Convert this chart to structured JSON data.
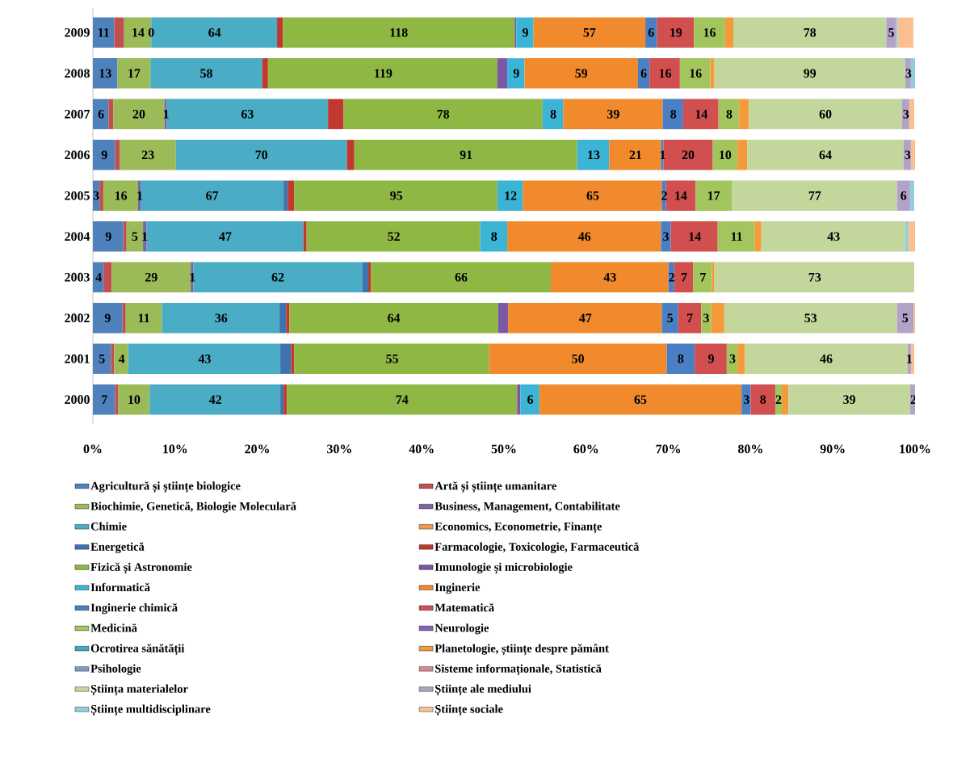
{
  "chart_data": {
    "type": "bar",
    "orientation": "horizontal",
    "stacked": true,
    "categories": [
      "2009",
      "2008",
      "2007",
      "2006",
      "2005",
      "2004",
      "2003",
      "2002",
      "2001",
      "2000"
    ],
    "xlim": [
      0,
      100
    ],
    "xticks": [
      {
        "value": 0,
        "label": "0%"
      },
      {
        "value": 10,
        "label": "10%"
      },
      {
        "value": 20,
        "label": "20%"
      },
      {
        "value": 30,
        "label": "30%"
      },
      {
        "value": 40,
        "label": "40%"
      },
      {
        "value": 50,
        "label": "50%"
      },
      {
        "value": 60,
        "label": "60%"
      },
      {
        "value": 70,
        "label": "70%"
      },
      {
        "value": 80,
        "label": "80%"
      },
      {
        "value": 90,
        "label": "90%"
      },
      {
        "value": 100,
        "label": "100%"
      }
    ],
    "legend": "bottom",
    "series": [
      {
        "name": "Agricultură și științe biologice",
        "color": "#4f81bd",
        "values": [
          2.6,
          3.0,
          1.9,
          2.7,
          0.8,
          3.7,
          1.3,
          3.6,
          2.2,
          2.7
        ]
      },
      {
        "name": "Artă și științe umanitare",
        "color": "#c0504d",
        "values": [
          1.2,
          null,
          0.6,
          0.6,
          0.5,
          0.4,
          1.0,
          0.4,
          0.4,
          0.4
        ]
      },
      {
        "name": "Biochimie, Genetică, Biologie Moleculară",
        "color": "#9bbb59",
        "values": [
          3.3,
          4.0,
          6.2,
          6.8,
          4.2,
          2.0,
          9.6,
          4.4,
          1.7,
          3.8
        ]
      },
      {
        "name": "Business, Management, Contabilitate",
        "color": "#8064a2",
        "values": [
          0,
          null,
          0.3,
          null,
          0.3,
          0.4,
          0.3,
          null,
          null,
          null
        ]
      },
      {
        "name": "Chimie",
        "color": "#4bacc6",
        "values": [
          15.3,
          13.6,
          19.6,
          20.8,
          17.4,
          19.1,
          20.6,
          14.3,
          18.5,
          15.9
        ]
      },
      {
        "name": "Economics, Econometrie, Finanțe",
        "color": "#f79646",
        "values": [
          null,
          null,
          null,
          null,
          null,
          null,
          null,
          null,
          null,
          null
        ]
      },
      {
        "name": "Energetică",
        "color": "#3f73b0",
        "values": [
          null,
          null,
          null,
          null,
          0.5,
          null,
          0.7,
          0.8,
          1.3,
          0.4
        ]
      },
      {
        "name": "Farmacologie, Toxicologie, Farmaceutică",
        "color": "#c0392f",
        "values": [
          0.7,
          0.7,
          1.9,
          0.9,
          0.8,
          0.4,
          0.3,
          0.4,
          0.4,
          0.4
        ]
      },
      {
        "name": "Fizică și Astronomie",
        "color": "#8fb744",
        "values": [
          28.2,
          27.9,
          24.2,
          27.1,
          24.7,
          21.1,
          21.9,
          25.4,
          23.7,
          28.0
        ]
      },
      {
        "name": "Imunologie și microbiologie",
        "color": "#7a58a3",
        "values": [
          0.2,
          1.2,
          null,
          null,
          null,
          null,
          null,
          1.2,
          null,
          0.4
        ]
      },
      {
        "name": "Informatică",
        "color": "#3cb4d6",
        "values": [
          2.1,
          2.1,
          2.5,
          3.9,
          3.1,
          3.3,
          null,
          null,
          null,
          2.3
        ]
      },
      {
        "name": "Inginerie",
        "color": "#f08a2c",
        "values": [
          13.6,
          13.8,
          12.1,
          6.3,
          16.9,
          18.7,
          14.3,
          18.7,
          21.6,
          24.6
        ]
      },
      {
        "name": "Inginerie chimică",
        "color": "#4a7fc4",
        "values": [
          1.4,
          1.4,
          2.5,
          0.3,
          0.5,
          1.2,
          0.7,
          2.0,
          3.4,
          1.1
        ]
      },
      {
        "name": "Matematică",
        "color": "#d24f4f",
        "values": [
          4.5,
          3.7,
          4.3,
          6.0,
          3.6,
          5.7,
          2.3,
          2.8,
          3.9,
          3.0
        ]
      },
      {
        "name": "Medicină",
        "color": "#a3c55e",
        "values": [
          3.8,
          3.7,
          2.5,
          3.0,
          4.4,
          4.5,
          2.3,
          1.2,
          1.3,
          0.8
        ]
      },
      {
        "name": "Neurologie",
        "color": "#8a63b8",
        "values": [
          null,
          null,
          null,
          null,
          null,
          null,
          null,
          null,
          null,
          null
        ]
      },
      {
        "name": "Ocrotirea sănătății",
        "color": "#3fa9c9",
        "values": [
          null,
          null,
          null,
          null,
          null,
          null,
          null,
          null,
          null,
          null
        ]
      },
      {
        "name": "Planetologie, științe despre pământ",
        "color": "#f59a3b",
        "values": [
          1.0,
          0.5,
          1.2,
          1.2,
          null,
          0.8,
          0.3,
          1.6,
          0.9,
          0.8
        ]
      },
      {
        "name": "Psihologie",
        "color": "#7f9cc7",
        "values": [
          null,
          null,
          null,
          null,
          null,
          null,
          null,
          null,
          null,
          null
        ]
      },
      {
        "name": "Sisteme informaționale, Statistică",
        "color": "#d48a88",
        "values": [
          null,
          null,
          null,
          null,
          null,
          null,
          null,
          null,
          null,
          null
        ]
      },
      {
        "name": "Știința materialelor",
        "color": "#c3d69b",
        "values": [
          18.6,
          23.2,
          18.6,
          19.0,
          20.1,
          17.5,
          24.3,
          21.0,
          19.8,
          14.8
        ]
      },
      {
        "name": "Științe ale mediului",
        "color": "#b3a2c7",
        "values": [
          1.2,
          0.7,
          0.9,
          0.9,
          1.6,
          null,
          null,
          2.0,
          0.4,
          0.8
        ]
      },
      {
        "name": "Științe multidisciplinare",
        "color": "#93cddd",
        "values": [
          0.2,
          0.5,
          null,
          null,
          0.5,
          0.4,
          null,
          null,
          null,
          null
        ]
      },
      {
        "name": "Științe sociale",
        "color": "#fac090",
        "values": [
          1.9,
          null,
          0.6,
          0.6,
          null,
          0.8,
          null,
          0.4,
          0.4,
          null
        ]
      }
    ],
    "annotations": [
      {
        "text": "11",
        "x": 1.3,
        "y": "2009"
      },
      {
        "text": "14",
        "x": 5.5,
        "y": "2009"
      },
      {
        "text": "0",
        "x": 7.1,
        "y": "2009"
      },
      {
        "text": "64",
        "x": 14.8,
        "y": "2009"
      },
      {
        "text": "118",
        "x": 37.2,
        "y": "2009"
      },
      {
        "text": "9",
        "x": 52.6,
        "y": "2009"
      },
      {
        "text": "57",
        "x": 60.4,
        "y": "2009"
      },
      {
        "text": "6",
        "x": 67.9,
        "y": "2009"
      },
      {
        "text": "19",
        "x": 70.9,
        "y": "2009"
      },
      {
        "text": "16",
        "x": 75.0,
        "y": "2009"
      },
      {
        "text": "78",
        "x": 87.2,
        "y": "2009"
      },
      {
        "text": "5",
        "x": 97.1,
        "y": "2009"
      },
      {
        "text": "13",
        "x": 1.5,
        "y": "2008"
      },
      {
        "text": "17",
        "x": 5.0,
        "y": "2008"
      },
      {
        "text": "58",
        "x": 13.8,
        "y": "2008"
      },
      {
        "text": "119",
        "x": 35.3,
        "y": "2008"
      },
      {
        "text": "9",
        "x": 51.5,
        "y": "2008"
      },
      {
        "text": "59",
        "x": 59.4,
        "y": "2008"
      },
      {
        "text": "6",
        "x": 67.0,
        "y": "2008"
      },
      {
        "text": "16",
        "x": 69.6,
        "y": "2008"
      },
      {
        "text": "16",
        "x": 73.3,
        "y": "2008"
      },
      {
        "text": "99",
        "x": 87.2,
        "y": "2008"
      },
      {
        "text": "3",
        "x": 99.2,
        "y": "2008"
      },
      {
        "text": "6",
        "x": 1.0,
        "y": "2007"
      },
      {
        "text": "20",
        "x": 5.6,
        "y": "2007"
      },
      {
        "text": "1",
        "x": 8.9,
        "y": "2007"
      },
      {
        "text": "63",
        "x": 18.8,
        "y": "2007"
      },
      {
        "text": "78",
        "x": 42.6,
        "y": "2007"
      },
      {
        "text": "8",
        "x": 56.0,
        "y": "2007"
      },
      {
        "text": "39",
        "x": 63.3,
        "y": "2007"
      },
      {
        "text": "8",
        "x": 70.6,
        "y": "2007"
      },
      {
        "text": "14",
        "x": 74.0,
        "y": "2007"
      },
      {
        "text": "8",
        "x": 77.4,
        "y": "2007"
      },
      {
        "text": "60",
        "x": 89.1,
        "y": "2007"
      },
      {
        "text": "3",
        "x": 98.9,
        "y": "2007"
      },
      {
        "text": "9",
        "x": 1.4,
        "y": "2006"
      },
      {
        "text": "23",
        "x": 6.7,
        "y": "2006"
      },
      {
        "text": "70",
        "x": 20.5,
        "y": "2006"
      },
      {
        "text": "91",
        "x": 45.4,
        "y": "2006"
      },
      {
        "text": "13",
        "x": 60.9,
        "y": "2006"
      },
      {
        "text": "21",
        "x": 66.0,
        "y": "2006"
      },
      {
        "text": "1",
        "x": 69.3,
        "y": "2006"
      },
      {
        "text": "20",
        "x": 72.4,
        "y": "2006"
      },
      {
        "text": "10",
        "x": 76.9,
        "y": "2006"
      },
      {
        "text": "64",
        "x": 89.1,
        "y": "2006"
      },
      {
        "text": "3",
        "x": 99.1,
        "y": "2006"
      },
      {
        "text": "3",
        "x": 0.4,
        "y": "2005"
      },
      {
        "text": "16",
        "x": 3.4,
        "y": "2005"
      },
      {
        "text": "1",
        "x": 5.7,
        "y": "2005"
      },
      {
        "text": "67",
        "x": 14.5,
        "y": "2005"
      },
      {
        "text": "95",
        "x": 36.9,
        "y": "2005"
      },
      {
        "text": "12",
        "x": 50.8,
        "y": "2005"
      },
      {
        "text": "65",
        "x": 60.8,
        "y": "2005"
      },
      {
        "text": "2",
        "x": 69.5,
        "y": "2005"
      },
      {
        "text": "14",
        "x": 71.5,
        "y": "2005"
      },
      {
        "text": "17",
        "x": 75.5,
        "y": "2005"
      },
      {
        "text": "77",
        "x": 87.8,
        "y": "2005"
      },
      {
        "text": "6",
        "x": 98.6,
        "y": "2005"
      },
      {
        "text": "9",
        "x": 1.9,
        "y": "2004"
      },
      {
        "text": "5",
        "x": 5.1,
        "y": "2004"
      },
      {
        "text": "1",
        "x": 6.3,
        "y": "2004"
      },
      {
        "text": "47",
        "x": 16.1,
        "y": "2004"
      },
      {
        "text": "52",
        "x": 36.6,
        "y": "2004"
      },
      {
        "text": "8",
        "x": 48.8,
        "y": "2004"
      },
      {
        "text": "46",
        "x": 59.8,
        "y": "2004"
      },
      {
        "text": "3",
        "x": 69.7,
        "y": "2004"
      },
      {
        "text": "14",
        "x": 73.2,
        "y": "2004"
      },
      {
        "text": "11",
        "x": 78.3,
        "y": "2004"
      },
      {
        "text": "43",
        "x": 90.1,
        "y": "2004"
      },
      {
        "text": "4",
        "x": 0.7,
        "y": "2003"
      },
      {
        "text": "29",
        "x": 7.1,
        "y": "2003"
      },
      {
        "text": "1",
        "x": 12.1,
        "y": "2003"
      },
      {
        "text": "62",
        "x": 22.5,
        "y": "2003"
      },
      {
        "text": "66",
        "x": 44.8,
        "y": "2003"
      },
      {
        "text": "43",
        "x": 62.9,
        "y": "2003"
      },
      {
        "text": "2",
        "x": 70.4,
        "y": "2003"
      },
      {
        "text": "7",
        "x": 71.9,
        "y": "2003"
      },
      {
        "text": "7",
        "x": 74.2,
        "y": "2003"
      },
      {
        "text": "73",
        "x": 87.8,
        "y": "2003"
      },
      {
        "text": "9",
        "x": 1.8,
        "y": "2002"
      },
      {
        "text": "11",
        "x": 6.2,
        "y": "2002"
      },
      {
        "text": "36",
        "x": 15.6,
        "y": "2002"
      },
      {
        "text": "64",
        "x": 36.6,
        "y": "2002"
      },
      {
        "text": "47",
        "x": 59.9,
        "y": "2002"
      },
      {
        "text": "5",
        "x": 70.2,
        "y": "2002"
      },
      {
        "text": "7",
        "x": 72.6,
        "y": "2002"
      },
      {
        "text": "3",
        "x": 74.6,
        "y": "2002"
      },
      {
        "text": "53",
        "x": 87.3,
        "y": "2002"
      },
      {
        "text": "5",
        "x": 98.8,
        "y": "2002"
      },
      {
        "text": "5",
        "x": 1.1,
        "y": "2001"
      },
      {
        "text": "4",
        "x": 3.5,
        "y": "2001"
      },
      {
        "text": "43",
        "x": 13.6,
        "y": "2001"
      },
      {
        "text": "55",
        "x": 36.4,
        "y": "2001"
      },
      {
        "text": "50",
        "x": 59.0,
        "y": "2001"
      },
      {
        "text": "8",
        "x": 71.5,
        "y": "2001"
      },
      {
        "text": "9",
        "x": 75.2,
        "y": "2001"
      },
      {
        "text": "3",
        "x": 77.8,
        "y": "2001"
      },
      {
        "text": "46",
        "x": 89.2,
        "y": "2001"
      },
      {
        "text": "1",
        "x": 99.3,
        "y": "2001"
      },
      {
        "text": "7",
        "x": 1.4,
        "y": "2000"
      },
      {
        "text": "10",
        "x": 5.0,
        "y": "2000"
      },
      {
        "text": "42",
        "x": 14.9,
        "y": "2000"
      },
      {
        "text": "74",
        "x": 37.6,
        "y": "2000"
      },
      {
        "text": "6",
        "x": 53.2,
        "y": "2000"
      },
      {
        "text": "65",
        "x": 66.6,
        "y": "2000"
      },
      {
        "text": "3",
        "x": 79.5,
        "y": "2000"
      },
      {
        "text": "8",
        "x": 81.5,
        "y": "2000"
      },
      {
        "text": "2",
        "x": 83.4,
        "y": "2000"
      },
      {
        "text": "39",
        "x": 92.0,
        "y": "2000"
      },
      {
        "text": "2",
        "x": 99.8,
        "y": "2000"
      }
    ]
  }
}
